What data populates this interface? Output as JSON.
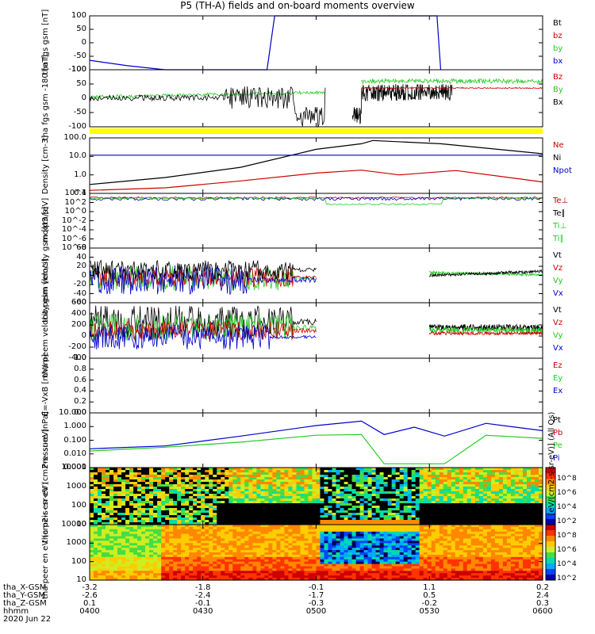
{
  "title": "P5 (TH-A) fields and on-board moments overview",
  "panels": [
    {
      "id": "fgs",
      "ylabel": [
        "tha",
        "fgs",
        "gsm",
        "[nT]"
      ],
      "yticks": [
        "100",
        "50",
        "0",
        "-50",
        "-100"
      ],
      "legend": [
        {
          "t": "Bt",
          "c": "#000000"
        },
        {
          "t": "bz",
          "c": "#cc0000"
        },
        {
          "t": "by",
          "c": "#22cc22"
        },
        {
          "t": "bx",
          "c": "#0000cc"
        }
      ]
    },
    {
      "id": "fgs_lo",
      "ylabel": [
        "tha",
        "fgs",
        "gsm",
        "-180",
        "[nT]"
      ],
      "yticks": [
        "100",
        "50",
        "0",
        "-50",
        "-100"
      ],
      "legend": [
        {
          "t": "Bz",
          "c": "#cc0000"
        },
        {
          "t": "By",
          "c": "#22cc22"
        },
        {
          "t": "Bx",
          "c": "#000000"
        }
      ]
    },
    {
      "id": "density",
      "ylabel": [
        "Density",
        "[cm-3]"
      ],
      "yticks": [
        "100.0",
        "10.0",
        "1.0",
        "0.1"
      ],
      "legend": [
        {
          "t": "Ne",
          "c": "#cc0000"
        },
        {
          "t": "Ni",
          "c": "#000000"
        },
        {
          "t": "Npot",
          "c": "#0000cc"
        }
      ]
    },
    {
      "id": "temp",
      "ylabel": [
        "moqt3",
        "[eV]"
      ],
      "yticks": [
        "10^4",
        "10^2",
        "10^0",
        "10^-2",
        "10^-4",
        "10^-6",
        "10^-8"
      ],
      "legend": [
        {
          "t": "Te⊥",
          "c": "#cc0000"
        },
        {
          "t": "Te∥",
          "c": "#000000"
        },
        {
          "t": "Ti⊥",
          "c": "#22cc22"
        },
        {
          "t": "Ti∥",
          "c": "#22cc22"
        }
      ]
    },
    {
      "id": "vi",
      "ylabel": [
        "tha",
        "peim",
        "velocity",
        "gsm",
        "[km/s]"
      ],
      "yticks": [
        "60",
        "40",
        "20",
        "0",
        "-20",
        "-40",
        "-60"
      ],
      "legend": [
        {
          "t": "Vt",
          "c": "#000000"
        },
        {
          "t": "Vz",
          "c": "#cc0000"
        },
        {
          "t": "Vy",
          "c": "#22cc22"
        },
        {
          "t": "Vx",
          "c": "#0000cc"
        }
      ]
    },
    {
      "id": "ve",
      "ylabel": [
        "tha",
        "peem",
        "velocity",
        "gsm",
        "[km/s]"
      ],
      "yticks": [
        "600",
        "400",
        "200",
        "0",
        "-200",
        "-400"
      ],
      "legend": [
        {
          "t": "Vt",
          "c": "#000000"
        },
        {
          "t": "Vz",
          "c": "#cc0000"
        },
        {
          "t": "Vy",
          "c": "#22cc22"
        },
        {
          "t": "Vx",
          "c": "#0000cc"
        }
      ]
    },
    {
      "id": "efield",
      "ylabel": [
        "E=-VxB",
        "[mV/m]"
      ],
      "yticks": [
        "1.0",
        "0.8",
        "0.6",
        "0.4",
        "0.2",
        "0.0"
      ],
      "legend": [
        {
          "t": "Ez",
          "c": "#cc0000"
        },
        {
          "t": "Ey",
          "c": "#22cc22"
        },
        {
          "t": "Ex",
          "c": "#0000cc"
        }
      ]
    },
    {
      "id": "pressure",
      "ylabel": [
        "Pressure",
        "[nPa]"
      ],
      "yticks": [
        "10.000",
        "1.000",
        "0.100",
        "0.010",
        "0.001"
      ],
      "legend": [
        {
          "t": "Pt",
          "c": "#000000"
        },
        {
          "t": "Pb",
          "c": "#cc0000"
        },
        {
          "t": "Pe",
          "c": "#22cc22"
        },
        {
          "t": "Pi",
          "c": "#0000cc"
        }
      ]
    },
    {
      "id": "ispec",
      "ylabel": [
        "tha",
        "peir",
        "en",
        "eV",
        "(cm2-s-",
        "sr-eV)"
      ],
      "yticks": [
        "10000",
        "1000",
        "100",
        "10"
      ],
      "legend": []
    },
    {
      "id": "espec",
      "ylabel": [
        "tha",
        "peer",
        "en",
        "eV",
        "(cm2-s-",
        "sr-eV)"
      ],
      "yticks": [
        "10000",
        "1000",
        "100",
        "10"
      ],
      "legend": []
    }
  ],
  "colorbar": {
    "label": "[eV/(cm2-s-sr-eV)] (All Qs)",
    "ticks": [
      "10^8",
      "10^6",
      "10^4",
      "10^2",
      "10^8",
      "10^6",
      "10^4",
      "10^2"
    ]
  },
  "ephemeris": {
    "rows": [
      {
        "label": "tha_X-GSM",
        "values": [
          "-3.2",
          "-1.8",
          "-0.1",
          "1.1",
          "0.2"
        ]
      },
      {
        "label": "tha_Y-GSM",
        "values": [
          "-2.6",
          "-2.4",
          "-1.7",
          "0.5",
          "2.4"
        ]
      },
      {
        "label": "tha_Z-GSM",
        "values": [
          "0.1",
          "-0.1",
          "-0.3",
          "-0.2",
          "0.3"
        ]
      },
      {
        "label": "hhmm",
        "values": [
          "0400",
          "0430",
          "0500",
          "0530",
          "0600"
        ]
      }
    ],
    "date": "2020 Jun 22"
  },
  "chart_data": {
    "type": "line",
    "x_unit": "UT",
    "xlim": [
      "04:00",
      "06:00"
    ],
    "xticks": [
      "04:00",
      "04:30",
      "05:00",
      "05:30",
      "06:00"
    ],
    "series": [
      {
        "name": "bx",
        "panel": "fgs",
        "x": [
          "04:00",
          "04:10",
          "04:20",
          "04:47",
          "04:49",
          "05:32",
          "05:33"
        ],
        "values": [
          -65,
          -85,
          -100,
          -100,
          100,
          100,
          -100
        ]
      },
      {
        "name": "Ni",
        "panel": "density",
        "x": [
          "04:00",
          "04:20",
          "04:40",
          "05:00",
          "05:12",
          "05:15",
          "05:33",
          "05:40",
          "06:00"
        ],
        "values": [
          0.2,
          0.6,
          3,
          50,
          120,
          200,
          120,
          80,
          25
        ]
      },
      {
        "name": "Ne",
        "panel": "density",
        "x": [
          "04:00",
          "04:20",
          "04:40",
          "05:00",
          "05:12",
          "05:22",
          "05:37",
          "06:00"
        ],
        "values": [
          0.08,
          0.12,
          0.35,
          1.2,
          1.9,
          0.9,
          1.8,
          0.3
        ]
      },
      {
        "name": "Npot",
        "panel": "density",
        "x": [
          "04:00",
          "06:00"
        ],
        "values": [
          20,
          20
        ]
      },
      {
        "name": "Pi",
        "panel": "pressure",
        "x": [
          "04:00",
          "04:20",
          "04:40",
          "05:00",
          "05:12",
          "05:18",
          "05:26",
          "05:34",
          "05:45",
          "06:00"
        ],
        "values": [
          0.03,
          0.05,
          0.3,
          2,
          4.5,
          0.4,
          1.5,
          0.3,
          3,
          0.8
        ]
      },
      {
        "name": "Pe",
        "panel": "pressure",
        "x": [
          "04:00",
          "04:20",
          "04:40",
          "05:00",
          "05:12",
          "05:18",
          "05:34",
          "05:45",
          "06:00"
        ],
        "values": [
          0.02,
          0.04,
          0.1,
          0.35,
          0.4,
          0.002,
          0.002,
          0.35,
          0.2
        ]
      }
    ]
  }
}
